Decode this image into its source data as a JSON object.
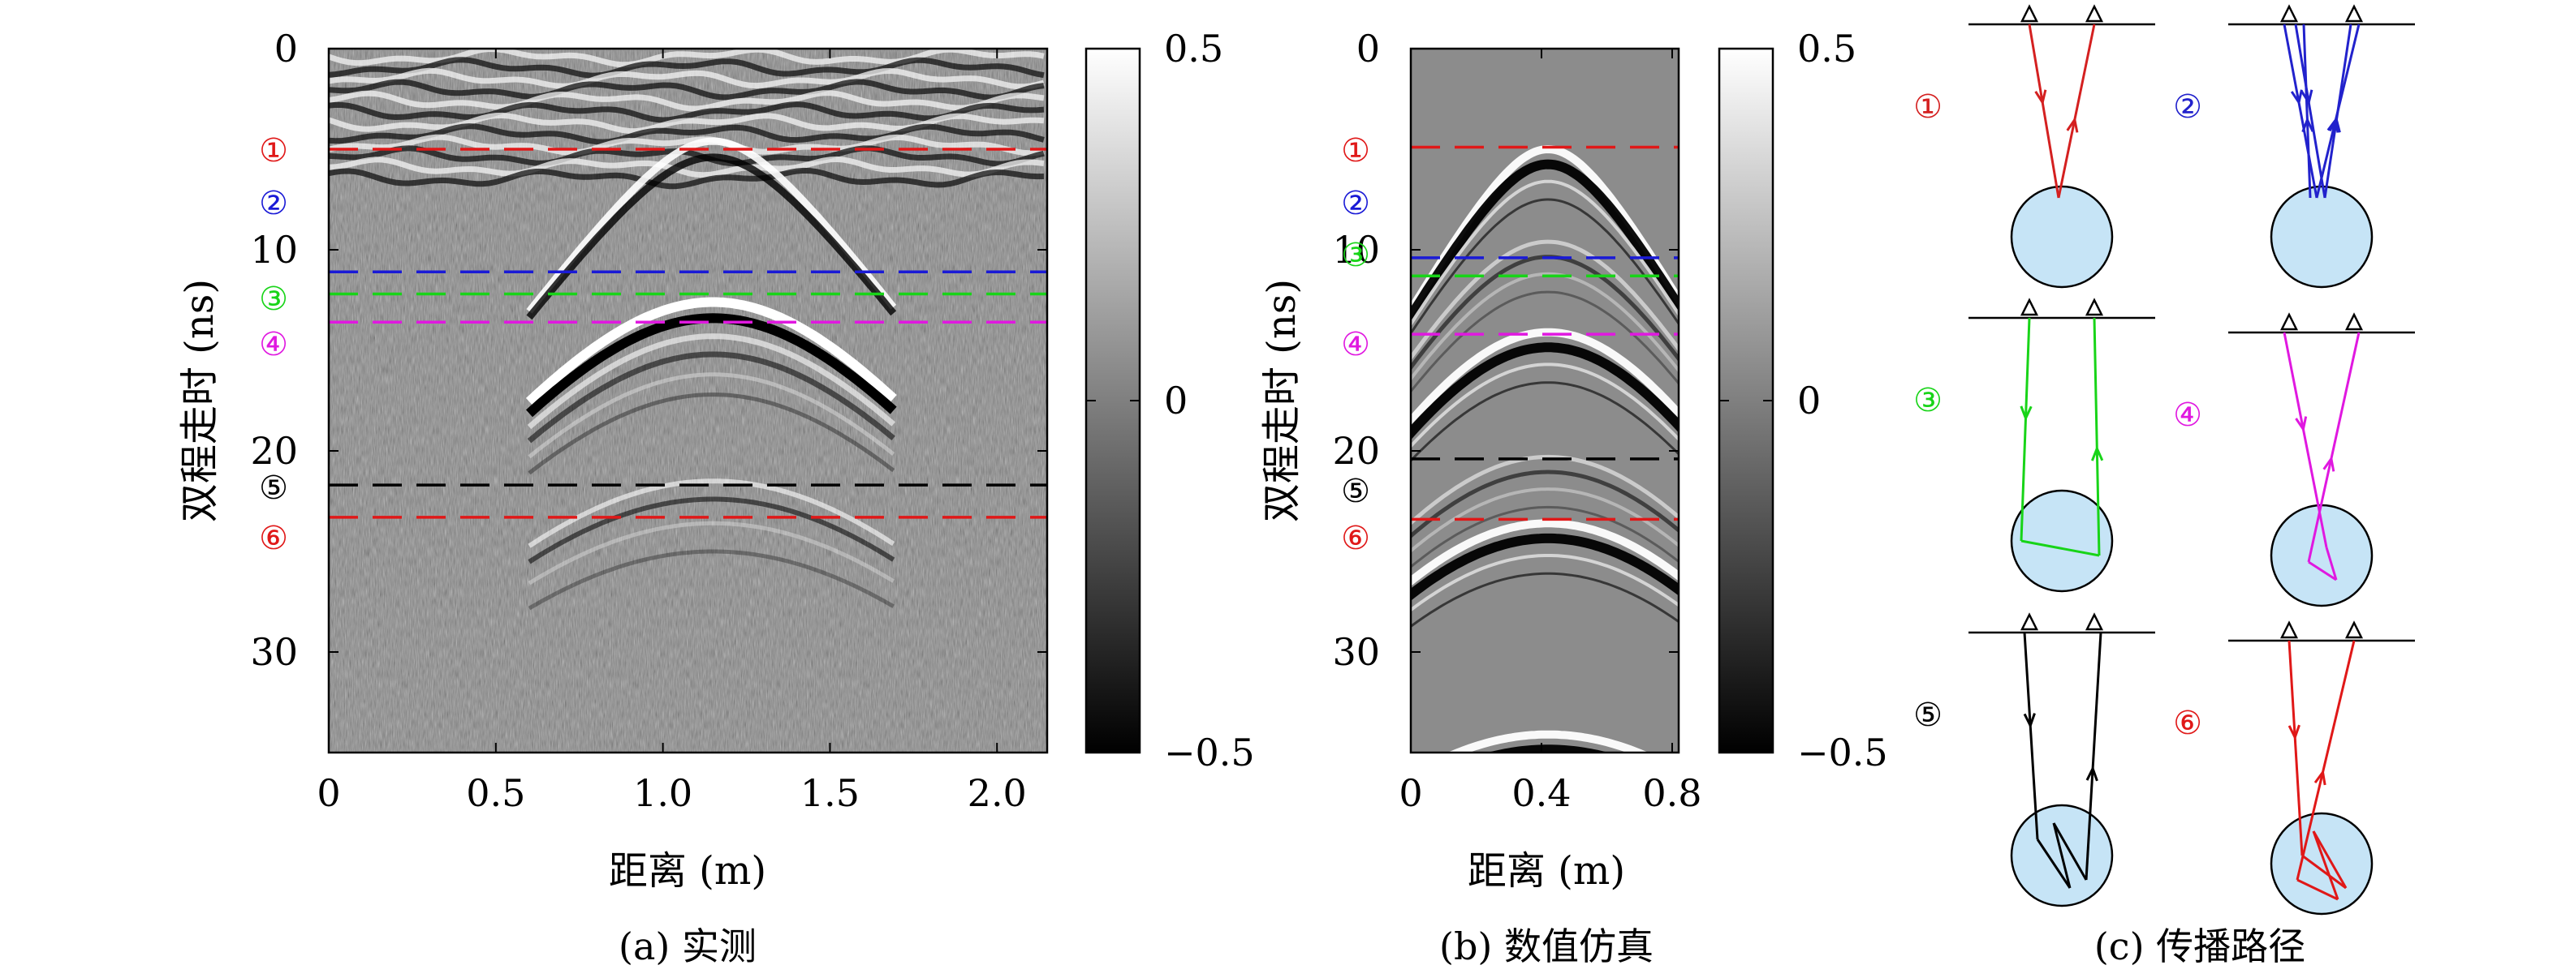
{
  "figure": {
    "caption_a": "(a) 实测",
    "caption_b": "(b) 数值仿真",
    "caption_c": "(c) 传播路径"
  },
  "chart_data": [
    {
      "type": "heatmap",
      "title": "",
      "xlabel": "距离 (m)",
      "ylabel": "双程走时 (ns)",
      "xlim": [
        0,
        2.15
      ],
      "ylim": [
        0,
        35
      ],
      "y_inverted": true,
      "x_ticks": [
        "0",
        "0.5",
        "1.0",
        "1.5",
        "2.0"
      ],
      "x_tick_values": [
        0,
        0.5,
        1.0,
        1.5,
        2.0
      ],
      "y_ticks": [
        "0",
        "10",
        "20",
        "30"
      ],
      "y_tick_values": [
        0,
        10,
        20,
        30
      ],
      "colorbar": {
        "range": [
          -0.5,
          0.5
        ],
        "ticks": [
          "0.5",
          "0",
          "−0.5"
        ],
        "tick_values": [
          0.5,
          0,
          -0.5
        ],
        "colormap": "gray"
      },
      "hyperbola_apex": {
        "x": 1.15,
        "t": 12.6
      },
      "reflection_lines": [
        {
          "label": "①",
          "t": 5.0,
          "color": "#e01818"
        },
        {
          "label": "②",
          "t": 11.1,
          "color": "#1a1ad6"
        },
        {
          "label": "③",
          "t": 12.2,
          "color": "#18d418"
        },
        {
          "label": "④",
          "t": 13.6,
          "color": "#e018e0"
        },
        {
          "label": "⑤",
          "t": 21.7,
          "color": "#000000"
        },
        {
          "label": "⑥",
          "t": 23.3,
          "color": "#e01818"
        }
      ]
    },
    {
      "type": "heatmap",
      "title": "",
      "xlabel": "距离 (m)",
      "ylabel": "双程走时 (ns)",
      "xlim": [
        0,
        0.82
      ],
      "ylim": [
        0,
        35
      ],
      "y_inverted": true,
      "x_ticks": [
        "0",
        "0.4",
        "0.8"
      ],
      "x_tick_values": [
        0,
        0.4,
        0.8
      ],
      "y_ticks": [
        "0",
        "10",
        "20",
        "30"
      ],
      "y_tick_values": [
        0,
        10,
        20,
        30
      ],
      "colorbar": {
        "range": [
          -0.5,
          0.5
        ],
        "ticks": [
          "0.5",
          "0",
          "−0.5"
        ],
        "tick_values": [
          0.5,
          0,
          -0.5
        ],
        "colormap": "gray"
      },
      "hyperbola_apex_x": 0.42,
      "hyperbola_apex_t": [
        5.0,
        9.6,
        14.1,
        20.3,
        23.6,
        34.1
      ],
      "reflection_lines": [
        {
          "label": "①",
          "t": 4.9,
          "color": "#e01818"
        },
        {
          "label": "②",
          "t": 10.4,
          "color": "#1a1ad6"
        },
        {
          "label": "③",
          "t": 11.3,
          "color": "#18d418"
        },
        {
          "label": "④",
          "t": 14.2,
          "color": "#e018e0"
        },
        {
          "label": "⑤",
          "t": 20.4,
          "color": "#000000"
        },
        {
          "label": "⑥",
          "t": 23.4,
          "color": "#e01818"
        }
      ]
    }
  ],
  "paths": [
    {
      "label": "①",
      "color": "#d42020"
    },
    {
      "label": "②",
      "color": "#2222cc"
    },
    {
      "label": "③",
      "color": "#18d418"
    },
    {
      "label": "④",
      "color": "#e018e0"
    },
    {
      "label": "⑤",
      "color": "#000000"
    },
    {
      "label": "⑥",
      "color": "#e01818"
    }
  ]
}
